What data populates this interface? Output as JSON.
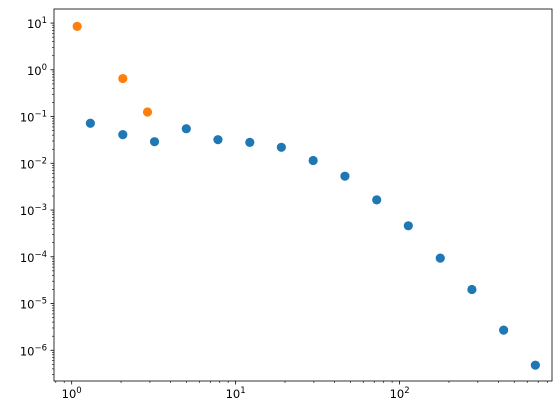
{
  "chart_data": {
    "type": "scatter",
    "xscale": "log",
    "yscale": "log",
    "title": "",
    "xlabel": "",
    "ylabel": "",
    "xlim": [
      0.78,
      850
    ],
    "ylim": [
      2.2e-07,
      20
    ],
    "grid": false,
    "x_ticks": [
      {
        "value": 1,
        "base": "10",
        "exp": "0"
      },
      {
        "value": 10,
        "base": "10",
        "exp": "1"
      },
      {
        "value": 100,
        "base": "10",
        "exp": "2"
      }
    ],
    "y_ticks": [
      {
        "value": 1e-06,
        "base": "10",
        "exp": "−6"
      },
      {
        "value": 1e-05,
        "base": "10",
        "exp": "−5"
      },
      {
        "value": 0.0001,
        "base": "10",
        "exp": "−4"
      },
      {
        "value": 0.001,
        "base": "10",
        "exp": "−3"
      },
      {
        "value": 0.01,
        "base": "10",
        "exp": "−2"
      },
      {
        "value": 0.1,
        "base": "10",
        "exp": "−1"
      },
      {
        "value": 1,
        "base": "10",
        "exp": "0"
      },
      {
        "value": 10,
        "base": "10",
        "exp": "1"
      }
    ],
    "series": [
      {
        "color": "#1f77b4",
        "points": [
          [
            1.3,
            0.072
          ],
          [
            2.05,
            0.041
          ],
          [
            3.2,
            0.029
          ],
          [
            5.0,
            0.055
          ],
          [
            7.8,
            0.032
          ],
          [
            12.2,
            0.028
          ],
          [
            19.0,
            0.022
          ],
          [
            29.7,
            0.0115
          ],
          [
            46.4,
            0.0053
          ],
          [
            72.5,
            0.00165
          ],
          [
            113,
            0.00046
          ],
          [
            177,
            9.35e-05
          ],
          [
            276,
            2e-05
          ],
          [
            431,
            2.7e-06
          ],
          [
            673,
            4.8e-07
          ]
        ]
      },
      {
        "color": "#ff7f0e",
        "points": [
          [
            1.08,
            8.5
          ],
          [
            2.05,
            0.65
          ],
          [
            2.9,
            0.125
          ]
        ]
      }
    ]
  }
}
